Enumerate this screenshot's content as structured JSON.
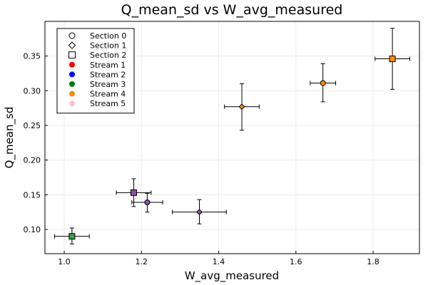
{
  "chart_data": {
    "type": "scatter",
    "title": "Q_mean_sd vs W_avg_measured",
    "xlabel": "W_avg_measured",
    "ylabel": "Q_mean_sd",
    "xlim": [
      0.95,
      1.92
    ],
    "ylim": [
      0.065,
      0.4
    ],
    "xticks": [
      1.0,
      1.2,
      1.4,
      1.6,
      1.8
    ],
    "xtick_labels": [
      "1.0",
      "1.2",
      "1.4",
      "1.6",
      "1.8"
    ],
    "yticks": [
      0.1,
      0.15,
      0.2,
      0.25,
      0.3,
      0.35
    ],
    "ytick_labels": [
      "0.10",
      "0.15",
      "0.20",
      "0.25",
      "0.30",
      "0.35"
    ],
    "grid": true,
    "legend_position": "top-left",
    "legend": {
      "sections": [
        {
          "label": "Section 0",
          "marker": "circle"
        },
        {
          "label": "Section 1",
          "marker": "diamond"
        },
        {
          "label": "Section 2",
          "marker": "square"
        }
      ],
      "streams": [
        {
          "label": "Stream 1",
          "color": "#ff0000"
        },
        {
          "label": "Stream 2",
          "color": "#0000ff"
        },
        {
          "label": "Stream 3",
          "color": "#008000"
        },
        {
          "label": "Stream 4",
          "color": "#ff8c00"
        },
        {
          "label": "Stream 5",
          "color": "#ffc0cb"
        }
      ]
    },
    "points": [
      {
        "x": 1.02,
        "y": 0.09,
        "xerr": 0.045,
        "yerr_low": 0.011,
        "yerr_high": 0.012,
        "marker": "square",
        "color": "#3aa241"
      },
      {
        "x": 1.18,
        "y": 0.153,
        "xerr": 0.045,
        "yerr_low": 0.02,
        "yerr_high": 0.02,
        "marker": "square",
        "color": "#8e50a8"
      },
      {
        "x": 1.215,
        "y": 0.139,
        "xerr": 0.04,
        "yerr_low": 0.014,
        "yerr_high": 0.013,
        "marker": "circle",
        "color": "#8e50a8"
      },
      {
        "x": 1.35,
        "y": 0.125,
        "xerr": 0.07,
        "yerr_low": 0.017,
        "yerr_high": 0.018,
        "marker": "diamond",
        "color": "#8e50a8"
      },
      {
        "x": 1.46,
        "y": 0.277,
        "xerr": 0.045,
        "yerr_low": 0.034,
        "yerr_high": 0.033,
        "marker": "diamond",
        "color": "#ff8c00"
      },
      {
        "x": 1.67,
        "y": 0.311,
        "xerr": 0.033,
        "yerr_low": 0.027,
        "yerr_high": 0.028,
        "marker": "circle",
        "color": "#ff8c00"
      },
      {
        "x": 1.85,
        "y": 0.346,
        "xerr": 0.045,
        "yerr_low": 0.044,
        "yerr_high": 0.044,
        "marker": "square",
        "color": "#ff8c00"
      }
    ]
  }
}
